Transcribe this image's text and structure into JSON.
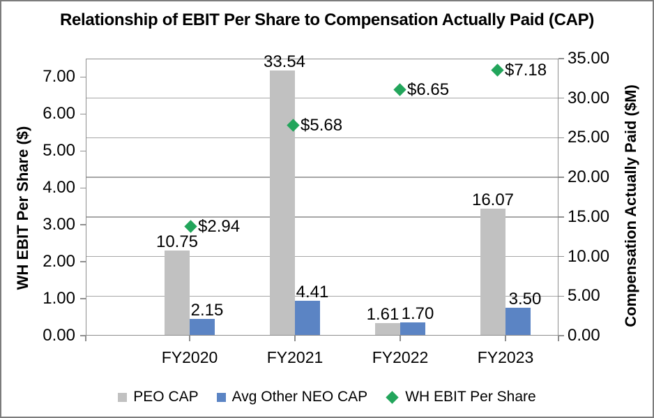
{
  "title": "Relationship of EBIT Per Share to Compensation Actually Paid (CAP)",
  "colors": {
    "peo_cap_bar": "#c1c1c1",
    "neo_cap_bar": "#5b84c4",
    "ebit_marker": "#22a55b",
    "gridline": "#a6a6a6",
    "axis_line": "#8e8e8e",
    "text": "#000000"
  },
  "chart_data": {
    "type": "bar",
    "subtype": "dual-axis combo: clustered columns + diamond markers",
    "categories": [
      "FY2020",
      "FY2021",
      "FY2022",
      "FY2023"
    ],
    "series": [
      {
        "name": "PEO CAP",
        "type": "bar",
        "axis": "right",
        "color": "#c1c1c1",
        "values": [
          10.75,
          33.54,
          1.61,
          16.07
        ],
        "labels": [
          "10.75",
          "33.54",
          "1.61",
          "16.07"
        ]
      },
      {
        "name": "Avg Other NEO CAP",
        "type": "bar",
        "axis": "right",
        "color": "#5b84c4",
        "values": [
          2.15,
          4.41,
          1.7,
          3.5
        ],
        "labels": [
          "2.15",
          "4.41",
          "1.70",
          "3.50"
        ]
      },
      {
        "name": "WH EBIT Per Share",
        "type": "scatter-diamond",
        "axis": "left",
        "color": "#22a55b",
        "values": [
          2.94,
          5.68,
          6.65,
          7.18
        ],
        "labels": [
          "$2.94",
          "$5.68",
          "$6.65",
          "$7.18"
        ]
      }
    ],
    "left_axis": {
      "title": "WH EBIT Per Share ($)",
      "min": 0,
      "max": 7.5,
      "tick_step": 1.0,
      "tick_labels": [
        "0.00",
        "1.00",
        "2.00",
        "3.00",
        "4.00",
        "5.00",
        "6.00",
        "7.00"
      ]
    },
    "right_axis": {
      "title": "Compensation Actually Paid ($M)",
      "min": 0,
      "max": 35,
      "tick_step": 5,
      "tick_labels": [
        "0.00",
        "5.00",
        "10.00",
        "15.00",
        "20.00",
        "25.00",
        "30.00",
        "35.00"
      ]
    },
    "grid": "horizontal gridlines at right-axis major ticks",
    "legend_position": "bottom"
  }
}
